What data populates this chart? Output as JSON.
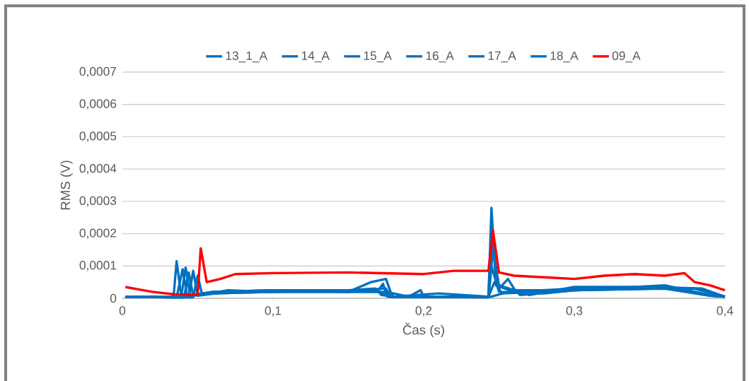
{
  "chart_data": {
    "type": "line",
    "xlabel": "Čas (s)",
    "ylabel": "RMS (V)",
    "xlim": [
      0,
      0.4
    ],
    "ylim": [
      0,
      0.0007
    ],
    "xticks": [
      0,
      {
        "value": 0.1,
        "label": "0,1"
      },
      {
        "value": 0.2,
        "label": "0,2"
      },
      {
        "value": 0.3,
        "label": "0,3"
      },
      {
        "value": 0.4,
        "label": "0,4"
      }
    ],
    "yticks": [
      0,
      {
        "value": 0.0001,
        "label": "0,0001"
      },
      {
        "value": 0.0002,
        "label": "0,0002"
      },
      {
        "value": 0.0003,
        "label": "0,0003"
      },
      {
        "value": 0.0004,
        "label": "0,0004"
      },
      {
        "value": 0.0005,
        "label": "0,0005"
      },
      {
        "value": 0.0006,
        "label": "0,0006"
      },
      {
        "value": 0.0007,
        "label": "0,0007"
      }
    ],
    "grid": "y",
    "legend": "top",
    "marker": "none",
    "line_style": "solid",
    "series": [
      {
        "name": "13_1_A",
        "color": "#0070c0",
        "x": [
          0.002,
          0.03,
          0.034,
          0.036,
          0.039,
          0.05,
          0.06,
          0.1,
          0.15,
          0.165,
          0.175,
          0.178,
          0.18,
          0.2,
          0.243,
          0.245,
          0.248,
          0.26,
          0.3,
          0.35,
          0.38,
          0.4
        ],
        "values": [
          5e-06,
          3e-06,
          5e-06,
          0.000115,
          1e-05,
          1e-05,
          1.5e-05,
          2e-05,
          2e-05,
          5e-05,
          6e-05,
          2e-05,
          5e-06,
          5e-06,
          5e-06,
          0.00028,
          4e-05,
          2e-05,
          3e-05,
          3e-05,
          3e-05,
          5e-06
        ]
      },
      {
        "name": "14_A",
        "color": "#0070c0",
        "x": [
          0.002,
          0.036,
          0.04,
          0.043,
          0.06,
          0.1,
          0.15,
          0.172,
          0.175,
          0.178,
          0.19,
          0.198,
          0.2,
          0.24,
          0.243,
          0.245,
          0.25,
          0.256,
          0.26,
          0.264,
          0.3,
          0.35,
          0.38,
          0.4
        ],
        "values": [
          5e-06,
          3e-06,
          9e-05,
          8e-06,
          2e-05,
          2.5e-05,
          2e-05,
          3e-05,
          3e-05,
          5e-06,
          5e-06,
          2.5e-05,
          5e-06,
          3e-06,
          5e-06,
          0.00019,
          3e-05,
          6e-05,
          3e-05,
          1e-05,
          2.5e-05,
          3e-05,
          3e-05,
          5e-06
        ]
      },
      {
        "name": "15_A",
        "color": "#0070c0",
        "x": [
          0.002,
          0.039,
          0.042,
          0.045,
          0.06,
          0.1,
          0.15,
          0.168,
          0.172,
          0.18,
          0.21,
          0.243,
          0.246,
          0.25,
          0.27,
          0.3,
          0.35,
          0.385,
          0.4
        ],
        "values": [
          5e-06,
          3e-06,
          9.5e-05,
          8e-06,
          2e-05,
          2.5e-05,
          2.5e-05,
          3e-05,
          1e-05,
          5e-06,
          1.5e-05,
          5e-06,
          0.00015,
          4e-05,
          1e-05,
          3.5e-05,
          3.5e-05,
          3e-05,
          5e-06
        ]
      },
      {
        "name": "16_A",
        "color": "#0070c0",
        "x": [
          0.002,
          0.041,
          0.044,
          0.047,
          0.06,
          0.1,
          0.15,
          0.17,
          0.173,
          0.176,
          0.243,
          0.245,
          0.25,
          0.28,
          0.3,
          0.36,
          0.39,
          0.4
        ],
        "values": [
          5e-06,
          3e-06,
          8e-05,
          8e-06,
          1.5e-05,
          2e-05,
          2.5e-05,
          2.5e-05,
          4.5e-05,
          5e-06,
          3e-06,
          0.0001,
          2e-05,
          1.5e-05,
          2.5e-05,
          4e-05,
          1e-05,
          5e-06
        ]
      },
      {
        "name": "17_A",
        "color": "#0070c0",
        "x": [
          0.002,
          0.044,
          0.047,
          0.05,
          0.07,
          0.1,
          0.15,
          0.17,
          0.18,
          0.243,
          0.247,
          0.252,
          0.3,
          0.36,
          0.39,
          0.4
        ],
        "values": [
          5e-06,
          3e-06,
          8.5e-05,
          8e-06,
          2e-05,
          2.5e-05,
          2e-05,
          2e-05,
          5e-06,
          5e-06,
          5e-05,
          1.5e-05,
          2.5e-05,
          3.5e-05,
          8e-06,
          5e-06
        ]
      },
      {
        "name": "18_A",
        "color": "#0070c0",
        "x": [
          0.002,
          0.047,
          0.05,
          0.053,
          0.07,
          0.1,
          0.15,
          0.175,
          0.19,
          0.245,
          0.26,
          0.3,
          0.36,
          0.39,
          0.4
        ],
        "values": [
          5e-06,
          3e-06,
          7e-05,
          1e-05,
          2.5e-05,
          2e-05,
          2e-05,
          2e-05,
          5e-06,
          5e-06,
          2.5e-05,
          2.5e-05,
          3e-05,
          8e-06,
          5e-06
        ]
      },
      {
        "name": "09_A",
        "color": "#ff0000",
        "x": [
          0.002,
          0.01,
          0.02,
          0.035,
          0.05,
          0.052,
          0.056,
          0.065,
          0.075,
          0.1,
          0.15,
          0.2,
          0.22,
          0.243,
          0.246,
          0.25,
          0.26,
          0.28,
          0.3,
          0.32,
          0.34,
          0.36,
          0.373,
          0.38,
          0.39,
          0.4
        ],
        "values": [
          3.5e-05,
          2.8e-05,
          2e-05,
          1.2e-05,
          1e-05,
          0.000155,
          5e-05,
          6e-05,
          7.5e-05,
          7.8e-05,
          8e-05,
          7.5e-05,
          8.5e-05,
          8.5e-05,
          0.00021,
          8e-05,
          7e-05,
          6.5e-05,
          6e-05,
          7e-05,
          7.5e-05,
          7e-05,
          7.8e-05,
          5e-05,
          4e-05,
          2.5e-05
        ]
      }
    ]
  }
}
